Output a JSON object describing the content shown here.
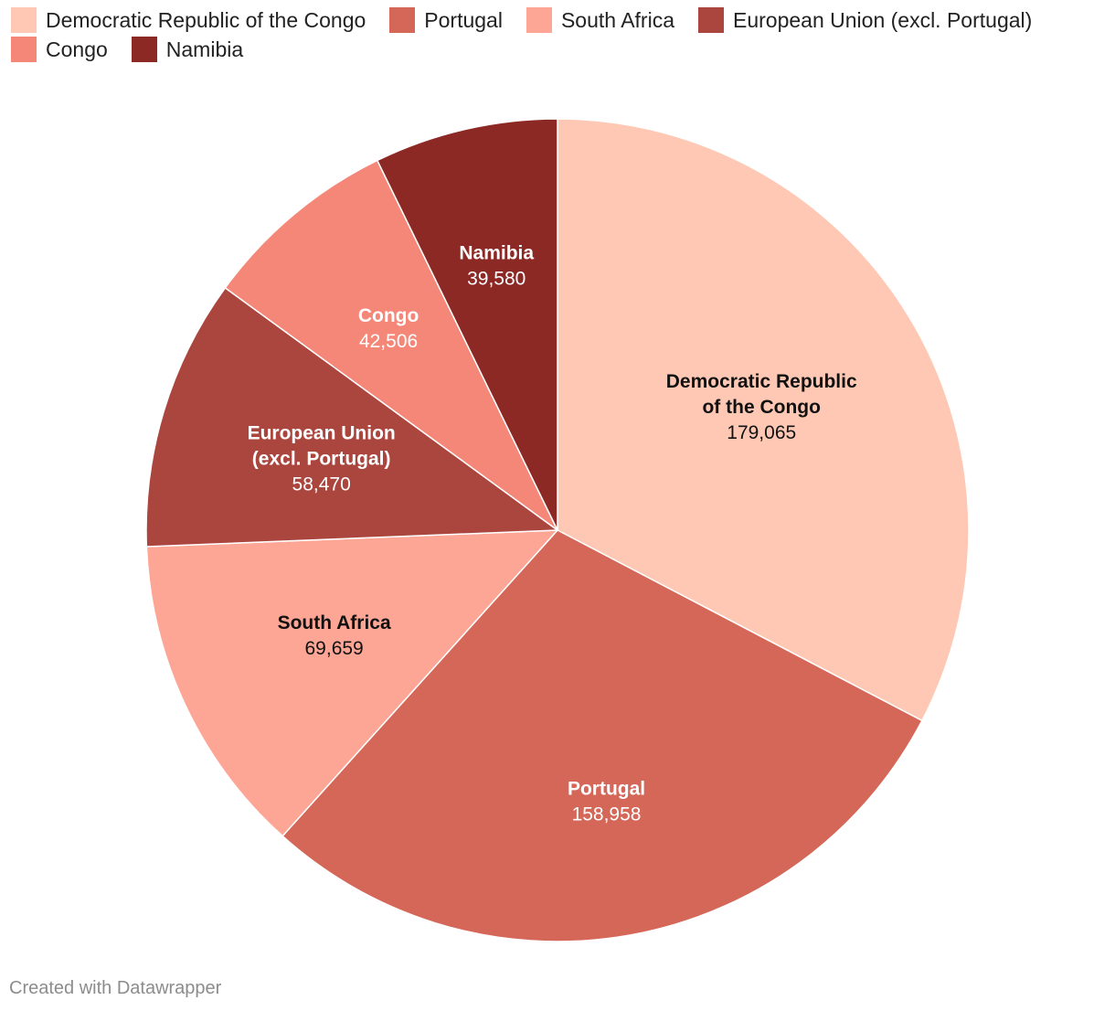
{
  "chart_data": {
    "type": "pie",
    "title": "",
    "legend_position": "top-left",
    "slices": [
      {
        "name": "Democratic Republic of the Congo",
        "label_lines": [
          "Democratic Republic",
          "of the Congo"
        ],
        "value": 179065,
        "value_label": "179,065",
        "color": "#fec8b4",
        "text_color": "#111111"
      },
      {
        "name": "Portugal",
        "label_lines": [
          "Portugal"
        ],
        "value": 158958,
        "value_label": "158,958",
        "color": "#d46758",
        "text_color": "#ffffff"
      },
      {
        "name": "South Africa",
        "label_lines": [
          "South Africa"
        ],
        "value": 69659,
        "value_label": "69,659",
        "color": "#fea695",
        "text_color": "#111111"
      },
      {
        "name": "European Union (excl. Portugal)",
        "label_lines": [
          "European Union",
          "(excl. Portugal)"
        ],
        "value": 58470,
        "value_label": "58,470",
        "color": "#ab463e",
        "text_color": "#ffffff"
      },
      {
        "name": "Congo",
        "label_lines": [
          "Congo"
        ],
        "value": 42506,
        "value_label": "42,506",
        "color": "#f58779",
        "text_color": "#ffffff"
      },
      {
        "name": "Namibia",
        "label_lines": [
          "Namibia"
        ],
        "value": 39580,
        "value_label": "39,580",
        "color": "#8c2925",
        "text_color": "#ffffff"
      }
    ]
  },
  "footer": {
    "credit": "Created with Datawrapper"
  }
}
